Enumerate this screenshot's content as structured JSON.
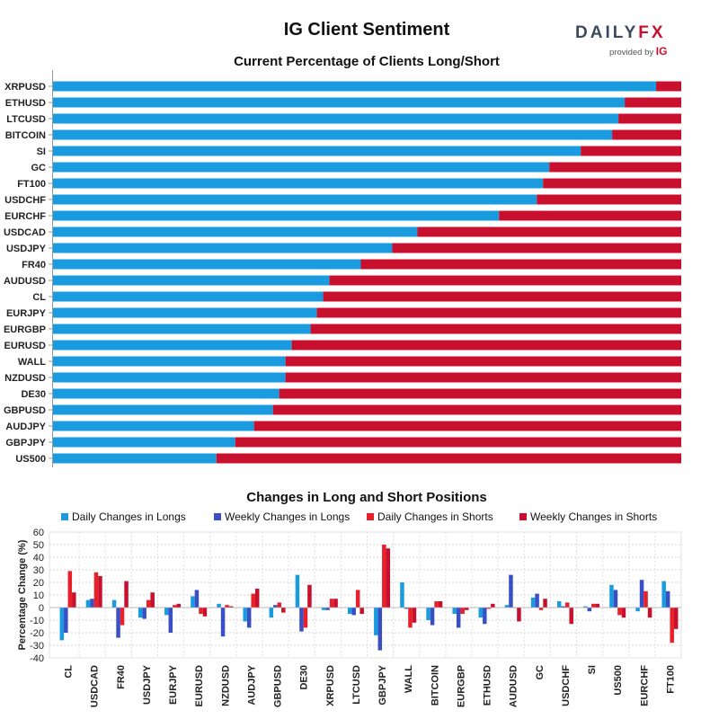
{
  "header": {
    "title": "IG Client Sentiment"
  },
  "logo": {
    "brand_main": "DAILY",
    "brand_accent": "FX",
    "provided_by": "provided by",
    "provider": "IG"
  },
  "colors": {
    "long": "#1a9be0",
    "short": "#c8102e",
    "daily_long": "#1a9be0",
    "weekly_long": "#3a4fc4",
    "daily_short": "#e8202a",
    "weekly_short": "#c8102e"
  },
  "chart_data": [
    {
      "type": "bar",
      "orientation": "horizontal",
      "stacked": true,
      "title": "Current Percentage of Clients Long/Short",
      "categories": [
        "XRPUSD",
        "ETHUSD",
        "LTCUSD",
        "BITCOIN",
        "SI",
        "GC",
        "FT100",
        "USDCHF",
        "EURCHF",
        "USDCAD",
        "USDJPY",
        "FR40",
        "AUDUSD",
        "CL",
        "EURJPY",
        "EURGBP",
        "EURUSD",
        "WALL",
        "NZDUSD",
        "DE30",
        "GBPUSD",
        "AUDJPY",
        "GBPJPY",
        "US500"
      ],
      "long_pct": [
        96,
        91,
        90,
        89,
        84,
        79,
        78,
        77,
        71,
        58,
        54,
        49,
        44,
        43,
        42,
        41,
        38,
        37,
        37,
        36,
        35,
        32,
        29,
        26
      ],
      "xlim": [
        0,
        100
      ]
    },
    {
      "type": "bar",
      "title": "Changes in Long and Short Positions",
      "ylabel": "Percentage Change (%)",
      "ylim": [
        -40,
        60
      ],
      "yticks": [
        -40,
        -30,
        -20,
        -10,
        0,
        10,
        20,
        30,
        40,
        50,
        60
      ],
      "categories": [
        "CL",
        "USDCAD",
        "FR40",
        "USDJPY",
        "EURJPY",
        "EURUSD",
        "NZDUSD",
        "AUDJPY",
        "GBPUSD",
        "DE30",
        "XRPUSD",
        "LTCUSD",
        "GBPJPY",
        "WALL",
        "BITCOIN",
        "EURGBP",
        "ETHUSD",
        "AUDUSD",
        "GC",
        "USDCHF",
        "SI",
        "US500",
        "EURCHF",
        "FT100"
      ],
      "series": [
        {
          "name": "Daily Changes in Longs",
          "values": [
            -26,
            6,
            6,
            -8,
            -6,
            9,
            3,
            -11,
            -8,
            26,
            -2,
            -5,
            -22,
            20,
            -10,
            -5,
            -8,
            2,
            8,
            5,
            1,
            18,
            -3,
            21
          ]
        },
        {
          "name": "Weekly Changes in Longs",
          "values": [
            -20,
            7,
            -24,
            -9,
            -20,
            14,
            -23,
            -16,
            2,
            -19,
            -2,
            -6,
            -34,
            -1,
            -14,
            -16,
            -13,
            26,
            11,
            1,
            -3,
            14,
            22,
            13
          ]
        },
        {
          "name": "Daily Changes in Shorts",
          "values": [
            29,
            28,
            -14,
            6,
            2,
            -5,
            2,
            11,
            4,
            -16,
            7,
            14,
            50,
            -16,
            5,
            -5,
            -1,
            0,
            -2,
            4,
            3,
            -6,
            13,
            -28
          ]
        },
        {
          "name": "Weekly Changes in Shorts",
          "values": [
            12,
            25,
            21,
            12,
            3,
            -7,
            1,
            15,
            -4,
            18,
            7,
            -5,
            47,
            -12,
            5,
            -2,
            3,
            -11,
            7,
            -13,
            3,
            -8,
            -8,
            -17
          ]
        }
      ]
    }
  ]
}
